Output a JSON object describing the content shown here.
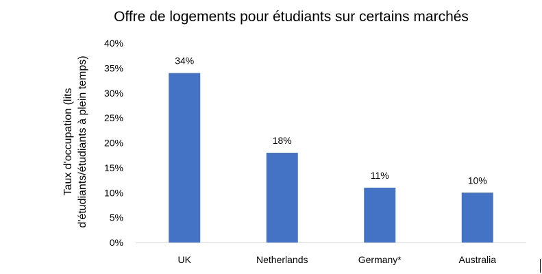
{
  "chart_data": {
    "type": "bar",
    "title": "Offre de logements pour étudiants sur certains marchés",
    "ylabel_lines": [
      "Taux d'occupation (lits",
      "d'étudiants/étudiants à plein temps)"
    ],
    "xlabel": "",
    "categories": [
      "UK",
      "Netherlands",
      "Germany*",
      "Australia"
    ],
    "values": [
      34,
      18,
      11,
      10
    ],
    "data_labels": [
      "34%",
      "18%",
      "11%",
      "10%"
    ],
    "ylim": [
      0,
      40
    ],
    "yticks": [
      0,
      5,
      10,
      15,
      20,
      25,
      30,
      35,
      40
    ],
    "ytick_labels": [
      "0%",
      "5%",
      "10%",
      "15%",
      "20%",
      "25%",
      "30%",
      "35%",
      "40%"
    ],
    "grid": false,
    "legend": "none",
    "colors": {
      "bar": "#4472c4",
      "axis": "#d9d9d9"
    }
  }
}
